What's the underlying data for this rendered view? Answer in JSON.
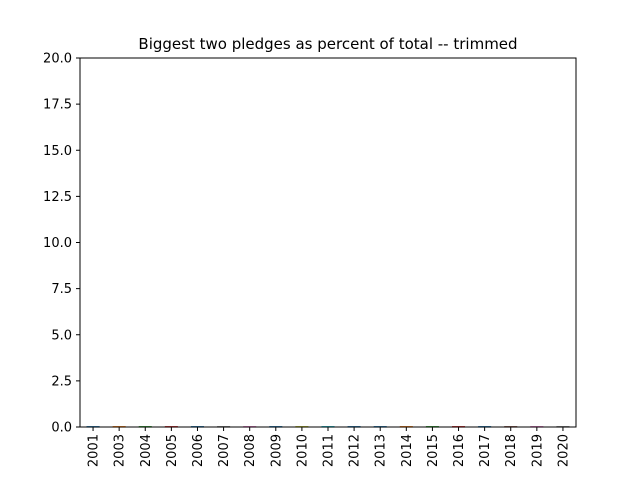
{
  "chart_data": {
    "type": "bar",
    "title": "Biggest two pledges as percent of total -- trimmed",
    "xlabel": "",
    "ylabel": "",
    "ylim": [
      0,
      20
    ],
    "yticks": [
      "0.0",
      "2.5",
      "5.0",
      "7.5",
      "10.0",
      "12.5",
      "15.0",
      "17.5",
      "20.0"
    ],
    "ytick_values": [
      0,
      2.5,
      5,
      7.5,
      10,
      12.5,
      15,
      17.5,
      20
    ],
    "categories": [
      "2001",
      "2003",
      "2004",
      "2005",
      "2006",
      "2007",
      "2008",
      "2009",
      "2010",
      "2011",
      "2012",
      "2013",
      "2014",
      "2015",
      "2016",
      "2017",
      "2018",
      "2019",
      "2020"
    ],
    "values": [
      0.05,
      0.05,
      0.05,
      0.05,
      0.05,
      0.05,
      0.05,
      0.05,
      0.05,
      0.05,
      0.05,
      0.05,
      0.05,
      0.05,
      0.05,
      0.05,
      0.05,
      0.05,
      0.05
    ],
    "bar_colors": [
      "#1f77b4",
      "#ff7f0e",
      "#2ca02c",
      "#d62728",
      "#1f77b4",
      "#7f7f7f",
      "#e377c2",
      "#1f77b4",
      "#bcbd22",
      "#17becf",
      "#1f77b4",
      "#1f77b4",
      "#ff7f0e",
      "#2ca02c",
      "#d62728",
      "#1f77b4",
      "#8c564b",
      "#e377c2",
      "#7f7f7f"
    ],
    "grid": false,
    "legend": "none"
  }
}
